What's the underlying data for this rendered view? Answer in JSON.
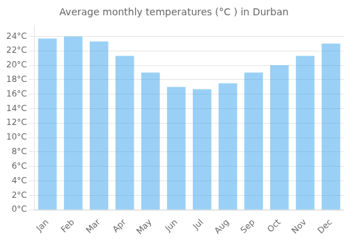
{
  "chart_data": {
    "type": "bar",
    "title": "Average monthly temperatures (°C ) in Durban",
    "categories": [
      "Jan",
      "Feb",
      "Mar",
      "Apr",
      "May",
      "Jun",
      "Jul",
      "Aug",
      "Sep",
      "Oct",
      "Nov",
      "Dec"
    ],
    "values": [
      23.7,
      24.0,
      23.3,
      21.3,
      19.0,
      17.0,
      16.7,
      17.5,
      19.0,
      20.0,
      21.3,
      23.0
    ],
    "ylim": [
      0,
      25.5
    ],
    "yticks": [
      {
        "value": 0,
        "label": "0°C"
      },
      {
        "value": 2,
        "label": "2°C"
      },
      {
        "value": 4,
        "label": "4°C"
      },
      {
        "value": 6,
        "label": "6°C"
      },
      {
        "value": 8,
        "label": "8°C"
      },
      {
        "value": 10,
        "label": "10°C"
      },
      {
        "value": 12,
        "label": "12°C"
      },
      {
        "value": 14,
        "label": "14°C"
      },
      {
        "value": 16,
        "label": "16°C"
      },
      {
        "value": 18,
        "label": "18°C"
      },
      {
        "value": 20,
        "label": "20°C"
      },
      {
        "value": 22,
        "label": "22°C"
      },
      {
        "value": 24,
        "label": "24°C"
      }
    ],
    "grid": true
  }
}
